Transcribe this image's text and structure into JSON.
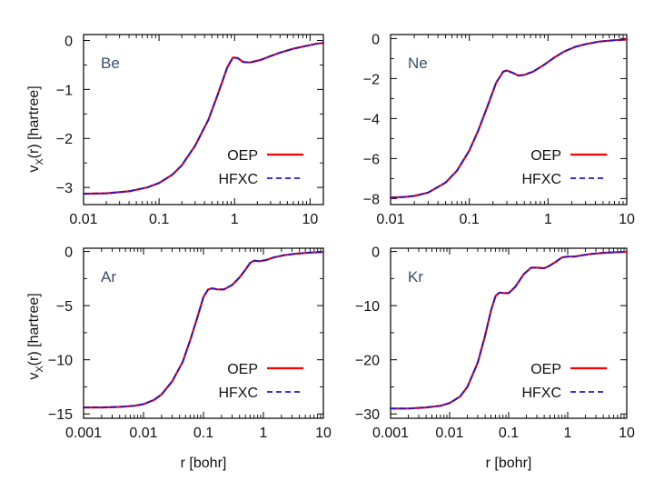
{
  "figure": {
    "xlabel": "r  [bohr]",
    "ylabel_main": "v",
    "ylabel_sub": "X",
    "ylabel_rest": "(r)  [hartree]"
  },
  "legend": {
    "oep_label": "OEP",
    "hfxc_label": "HFXC",
    "oep_color": "#ff0000",
    "hfxc_color": "#1a1acc"
  },
  "chart_data": [
    {
      "type": "line",
      "title": "Be",
      "xscale": "log",
      "xlim": [
        0.01,
        15
      ],
      "ylim": [
        -3.35,
        0.12
      ],
      "xticks": [
        0.01,
        0.1,
        1,
        10
      ],
      "xtick_labels": [
        "0.01",
        "0.1",
        "1",
        "10"
      ],
      "yticks": [
        0,
        -1,
        -2,
        -3
      ],
      "ytick_labels": [
        "0",
        "−1",
        "−2",
        "−3"
      ],
      "series": [
        {
          "name": "OEP",
          "x": [
            0.01,
            0.02,
            0.04,
            0.07,
            0.1,
            0.15,
            0.2,
            0.3,
            0.45,
            0.6,
            0.8,
            0.95,
            1.1,
            1.3,
            1.6,
            2.2,
            3,
            4,
            6,
            9,
            12,
            15
          ],
          "y": [
            -3.13,
            -3.12,
            -3.08,
            -3.0,
            -2.91,
            -2.74,
            -2.55,
            -2.15,
            -1.62,
            -1.1,
            -0.55,
            -0.35,
            -0.36,
            -0.44,
            -0.45,
            -0.4,
            -0.32,
            -0.25,
            -0.17,
            -0.11,
            -0.07,
            -0.05
          ]
        },
        {
          "name": "HFXC",
          "x": [
            0.01,
            0.02,
            0.04,
            0.07,
            0.1,
            0.15,
            0.2,
            0.3,
            0.45,
            0.6,
            0.8,
            0.95,
            1.1,
            1.3,
            1.6,
            2.2,
            3,
            4,
            6,
            9,
            12,
            15
          ],
          "y": [
            -3.13,
            -3.12,
            -3.08,
            -3.0,
            -2.91,
            -2.74,
            -2.55,
            -2.15,
            -1.62,
            -1.1,
            -0.55,
            -0.35,
            -0.36,
            -0.44,
            -0.45,
            -0.4,
            -0.32,
            -0.25,
            -0.17,
            -0.11,
            -0.07,
            -0.05
          ]
        }
      ]
    },
    {
      "type": "line",
      "title": "Ne",
      "xscale": "log",
      "xlim": [
        0.01,
        10
      ],
      "ylim": [
        -8.3,
        0.2
      ],
      "xticks": [
        0.01,
        0.1,
        1,
        10
      ],
      "xtick_labels": [
        "0.01",
        "0.1",
        "1",
        "10"
      ],
      "yticks": [
        0,
        -2,
        -4,
        -6,
        -8
      ],
      "ytick_labels": [
        "0",
        "−2",
        "−4",
        "−6",
        "−8"
      ],
      "series": [
        {
          "name": "OEP",
          "x": [
            0.01,
            0.015,
            0.02,
            0.03,
            0.05,
            0.07,
            0.1,
            0.13,
            0.17,
            0.22,
            0.27,
            0.3,
            0.35,
            0.42,
            0.5,
            0.65,
            0.9,
            1.2,
            1.6,
            2.2,
            3,
            4.5,
            7,
            10
          ],
          "y": [
            -7.95,
            -7.92,
            -7.87,
            -7.7,
            -7.2,
            -6.6,
            -5.6,
            -4.6,
            -3.4,
            -2.2,
            -1.65,
            -1.6,
            -1.7,
            -1.85,
            -1.82,
            -1.65,
            -1.3,
            -0.95,
            -0.65,
            -0.42,
            -0.28,
            -0.15,
            -0.08,
            -0.05
          ]
        },
        {
          "name": "HFXC",
          "x": [
            0.01,
            0.015,
            0.02,
            0.03,
            0.05,
            0.07,
            0.1,
            0.13,
            0.17,
            0.22,
            0.27,
            0.3,
            0.35,
            0.42,
            0.5,
            0.65,
            0.9,
            1.2,
            1.6,
            2.2,
            3,
            4.5,
            7,
            10
          ],
          "y": [
            -7.95,
            -7.92,
            -7.87,
            -7.7,
            -7.2,
            -6.6,
            -5.6,
            -4.6,
            -3.4,
            -2.2,
            -1.65,
            -1.6,
            -1.7,
            -1.85,
            -1.82,
            -1.65,
            -1.3,
            -0.95,
            -0.65,
            -0.42,
            -0.28,
            -0.15,
            -0.08,
            -0.05
          ]
        }
      ]
    },
    {
      "type": "line",
      "title": "Ar",
      "xscale": "log",
      "xlim": [
        0.001,
        10
      ],
      "ylim": [
        -15.4,
        0.3
      ],
      "xticks": [
        0.001,
        0.01,
        0.1,
        1,
        10
      ],
      "xtick_labels": [
        "0.001",
        "0.01",
        "0.1",
        "1",
        "10"
      ],
      "yticks": [
        0,
        -5,
        -10,
        -15
      ],
      "ytick_labels": [
        "0",
        "−5",
        "−10",
        "−15"
      ],
      "series": [
        {
          "name": "OEP",
          "x": [
            0.001,
            0.002,
            0.004,
            0.007,
            0.01,
            0.015,
            0.02,
            0.03,
            0.045,
            0.06,
            0.08,
            0.1,
            0.12,
            0.14,
            0.17,
            0.22,
            0.3,
            0.4,
            0.5,
            0.6,
            0.7,
            0.85,
            1.1,
            1.5,
            2.2,
            3.5,
            6,
            10
          ],
          "y": [
            -14.4,
            -14.4,
            -14.35,
            -14.25,
            -14.1,
            -13.7,
            -13.2,
            -12.0,
            -10.2,
            -8.2,
            -6.0,
            -4.2,
            -3.5,
            -3.4,
            -3.5,
            -3.5,
            -3.1,
            -2.4,
            -1.7,
            -1.05,
            -0.85,
            -0.9,
            -0.8,
            -0.55,
            -0.35,
            -0.2,
            -0.1,
            -0.05
          ]
        },
        {
          "name": "HFXC",
          "x": [
            0.001,
            0.002,
            0.004,
            0.007,
            0.01,
            0.015,
            0.02,
            0.03,
            0.045,
            0.06,
            0.08,
            0.1,
            0.12,
            0.14,
            0.17,
            0.22,
            0.3,
            0.4,
            0.5,
            0.6,
            0.7,
            0.85,
            1.1,
            1.5,
            2.2,
            3.5,
            6,
            10
          ],
          "y": [
            -14.4,
            -14.4,
            -14.35,
            -14.25,
            -14.1,
            -13.7,
            -13.2,
            -12.0,
            -10.2,
            -8.2,
            -6.0,
            -4.2,
            -3.5,
            -3.4,
            -3.5,
            -3.5,
            -3.1,
            -2.4,
            -1.7,
            -1.05,
            -0.85,
            -0.9,
            -0.8,
            -0.55,
            -0.35,
            -0.2,
            -0.1,
            -0.05
          ]
        }
      ]
    },
    {
      "type": "line",
      "title": "Kr",
      "xscale": "log",
      "xlim": [
        0.001,
        10
      ],
      "ylim": [
        -30.8,
        0.6
      ],
      "xticks": [
        0.001,
        0.01,
        0.1,
        1,
        10
      ],
      "xtick_labels": [
        "0.001",
        "0.01",
        "0.1",
        "1",
        "10"
      ],
      "yticks": [
        0,
        -10,
        -20,
        -30
      ],
      "ytick_labels": [
        "0",
        "−10",
        "−20",
        "−30"
      ],
      "series": [
        {
          "name": "OEP",
          "x": [
            0.001,
            0.002,
            0.004,
            0.007,
            0.01,
            0.015,
            0.02,
            0.03,
            0.04,
            0.05,
            0.06,
            0.07,
            0.085,
            0.1,
            0.13,
            0.18,
            0.24,
            0.3,
            0.4,
            0.5,
            0.65,
            0.8,
            1.0,
            1.3,
            1.8,
            2.5,
            4,
            6,
            10
          ],
          "y": [
            -29.0,
            -29.0,
            -28.8,
            -28.5,
            -28.0,
            -26.8,
            -25.0,
            -20.5,
            -15.5,
            -11.0,
            -8.2,
            -7.6,
            -7.7,
            -7.7,
            -6.5,
            -4.2,
            -3.0,
            -3.0,
            -3.1,
            -2.6,
            -1.8,
            -1.1,
            -0.95,
            -0.95,
            -0.7,
            -0.45,
            -0.25,
            -0.15,
            -0.08
          ]
        },
        {
          "name": "HFXC",
          "x": [
            0.001,
            0.002,
            0.004,
            0.007,
            0.01,
            0.015,
            0.02,
            0.03,
            0.04,
            0.05,
            0.06,
            0.07,
            0.085,
            0.1,
            0.13,
            0.18,
            0.24,
            0.3,
            0.4,
            0.5,
            0.65,
            0.8,
            1.0,
            1.3,
            1.8,
            2.5,
            4,
            6,
            10
          ],
          "y": [
            -29.0,
            -29.0,
            -28.8,
            -28.5,
            -28.0,
            -26.8,
            -25.0,
            -20.5,
            -15.5,
            -11.0,
            -8.2,
            -7.6,
            -7.7,
            -7.7,
            -6.5,
            -4.2,
            -3.0,
            -3.0,
            -3.1,
            -2.6,
            -1.8,
            -1.1,
            -0.95,
            -0.95,
            -0.7,
            -0.45,
            -0.25,
            -0.15,
            -0.08
          ]
        }
      ]
    }
  ]
}
